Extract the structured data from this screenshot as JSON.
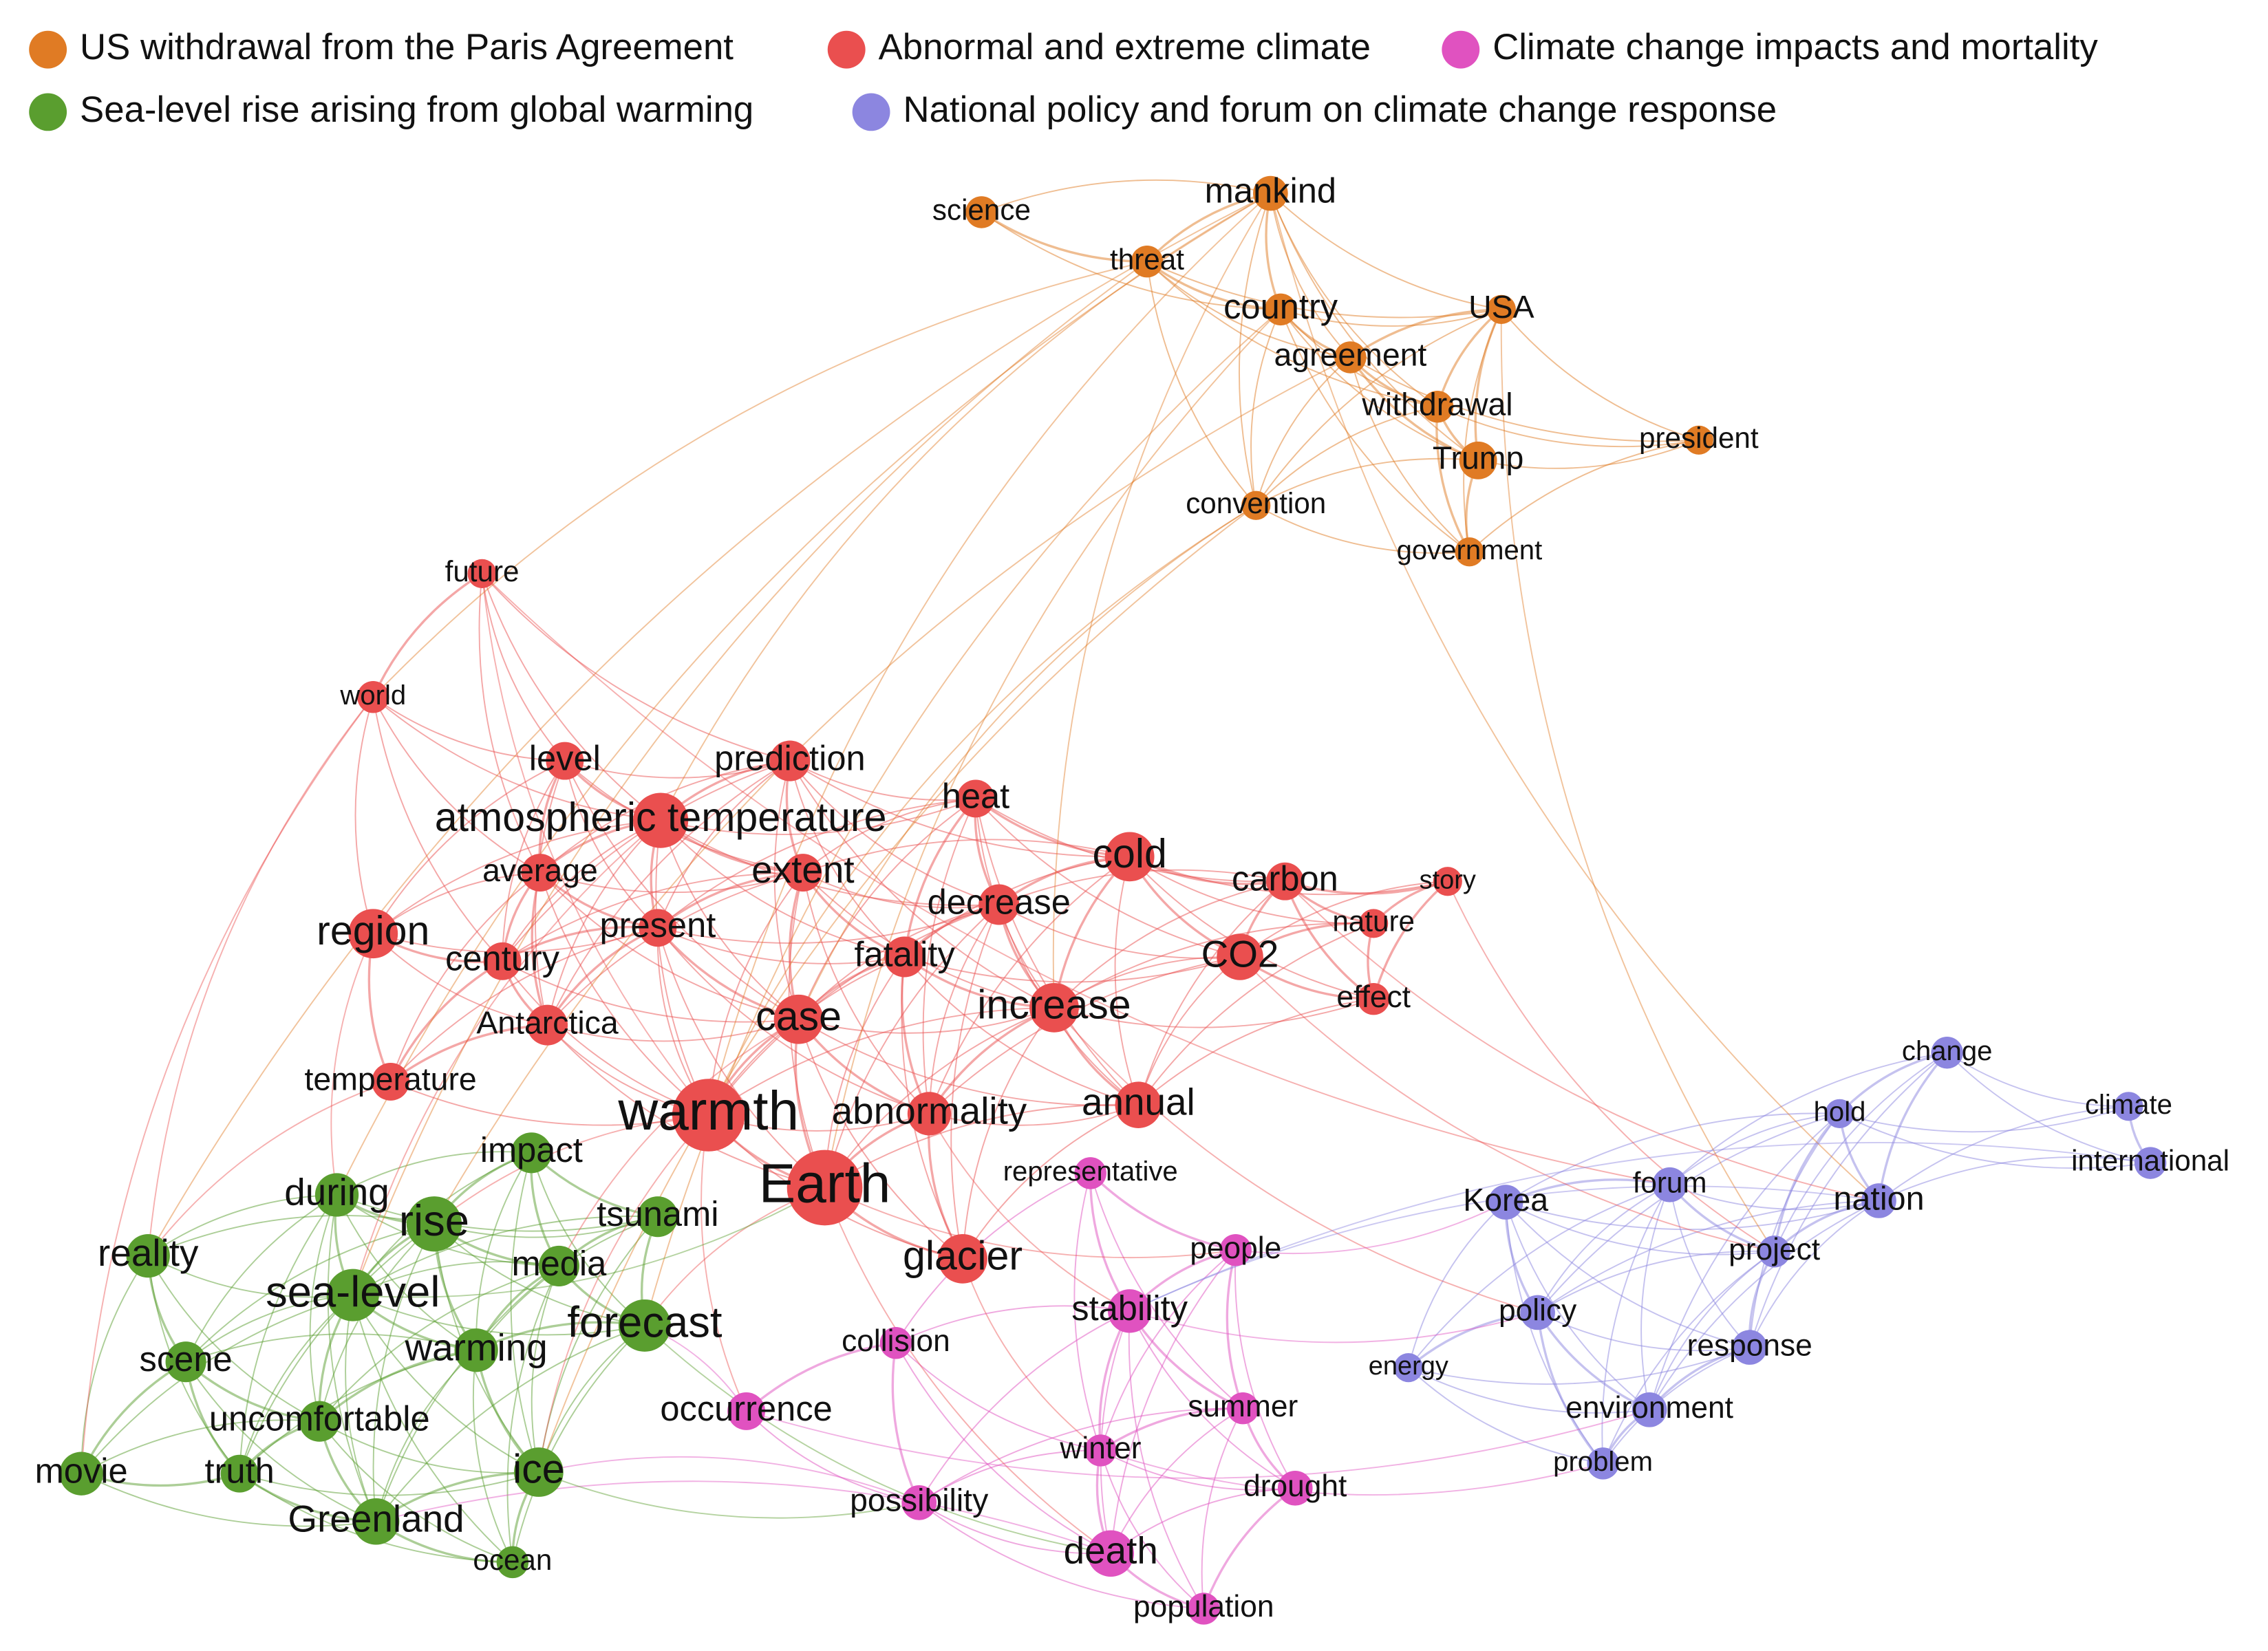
{
  "clusters": [
    {
      "label": "US withdrawal from the Paris Agreement",
      "color": "#e07b24",
      "nodes": [
        "mankind",
        "science",
        "threat",
        "country",
        "USA",
        "agreement",
        "withdrawal",
        "Trump",
        "president",
        "convention",
        "government"
      ]
    },
    {
      "label": "Abnormal and extreme climate",
      "color": "#ea4f4f",
      "nodes": [
        "future",
        "world",
        "level",
        "prediction",
        "atmospheric temperature",
        "heat",
        "cold",
        "average",
        "extent",
        "carbon",
        "story",
        "region",
        "present",
        "decrease",
        "nature",
        "century",
        "fatality",
        "CO2",
        "Antarctica",
        "case",
        "increase",
        "effect",
        "temperature",
        "warmth",
        "abnormality",
        "annual",
        "Earth",
        "glacier"
      ]
    },
    {
      "label": "Climate change impacts and mortality",
      "color": "#e052c0",
      "nodes": [
        "representative",
        "people",
        "stability",
        "collision",
        "occurrence",
        "summer",
        "winter",
        "drought",
        "possibility",
        "death",
        "population"
      ]
    },
    {
      "label": "Sea-level rise arising from global warming",
      "color": "#5a9e2f",
      "nodes": [
        "impact",
        "during",
        "rise",
        "tsunami",
        "reality",
        "media",
        "sea-level",
        "forecast",
        "warming",
        "scene",
        "uncomfortable",
        "movie",
        "truth",
        "ice",
        "Greenland",
        "ocean"
      ]
    },
    {
      "label": "National policy and forum on climate change response",
      "color": "#8c86e0",
      "nodes": [
        "change",
        "hold",
        "climate",
        "international",
        "forum",
        "Korea",
        "nation",
        "project",
        "policy",
        "energy",
        "response",
        "environment",
        "problem"
      ]
    }
  ]
}
